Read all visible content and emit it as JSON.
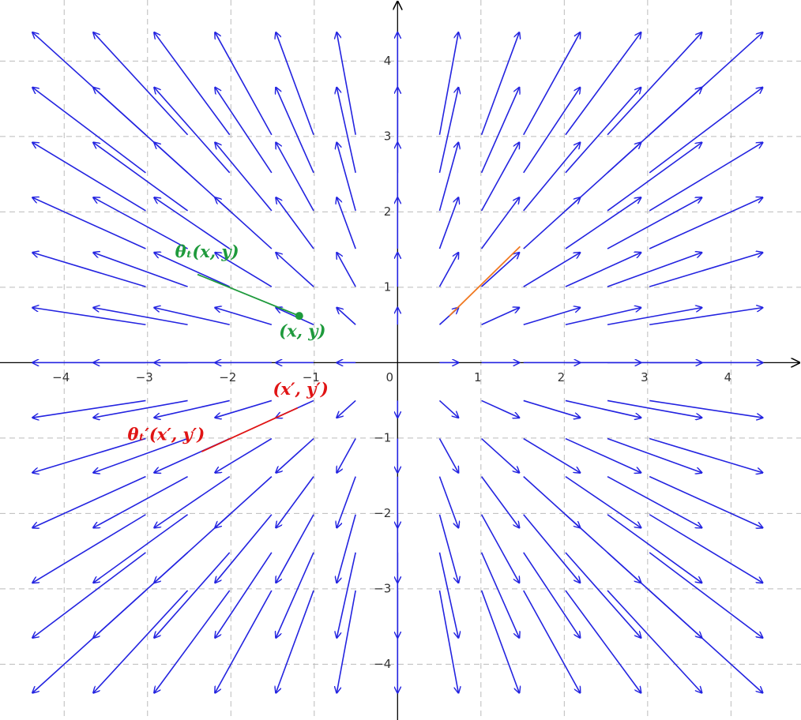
{
  "chart_data": {
    "type": "vector-field",
    "xlim": [
      -4.77,
      4.84
    ],
    "ylim": [
      -4.74,
      4.81
    ],
    "xticks": [
      {
        "value": -4,
        "label": "−4"
      },
      {
        "value": -3,
        "label": "−3"
      },
      {
        "value": -2,
        "label": "−2"
      },
      {
        "value": -1,
        "label": "−1"
      },
      0,
      1,
      2,
      3,
      4
    ],
    "yticks": [
      {
        "value": -4,
        "label": "−4"
      },
      {
        "value": -3,
        "label": "−3"
      },
      {
        "value": -2,
        "label": "−2"
      },
      {
        "value": -1,
        "label": "−1"
      },
      1,
      2,
      3,
      4
    ],
    "grid": true,
    "field": {
      "color": "#2323e0",
      "arrow_scale": 0.31,
      "x": [
        -4.38,
        -3.65,
        -2.92,
        -2.19,
        -1.46,
        -0.73,
        0,
        0.73,
        1.46,
        2.19,
        2.92,
        3.65,
        4.38
      ],
      "y": [
        -4.38,
        -3.65,
        -2.92,
        -2.19,
        -1.46,
        -0.73,
        0,
        0.73,
        1.46,
        2.19,
        2.92,
        3.65,
        4.38
      ]
    },
    "point": {
      "x": -1.18,
      "y": 0.62,
      "color": "#1e9a3c",
      "label": "(x, y)"
    },
    "segments": [
      {
        "x": [
          -2.4,
          -1.18
        ],
        "y": [
          1.17,
          0.62
        ],
        "color": "#1e9a3c",
        "label": "θₜ(x, y)"
      },
      {
        "x": [
          -2.35,
          -1.2
        ],
        "y": [
          -1.18,
          -0.6
        ],
        "color": "#e01414",
        "label": "θₜ′(x′, y′)",
        "end_label": "(x′, y′)"
      },
      {
        "x": [
          0.62,
          1.47
        ],
        "y": [
          0.62,
          1.54
        ],
        "color": "#f07820"
      }
    ]
  }
}
